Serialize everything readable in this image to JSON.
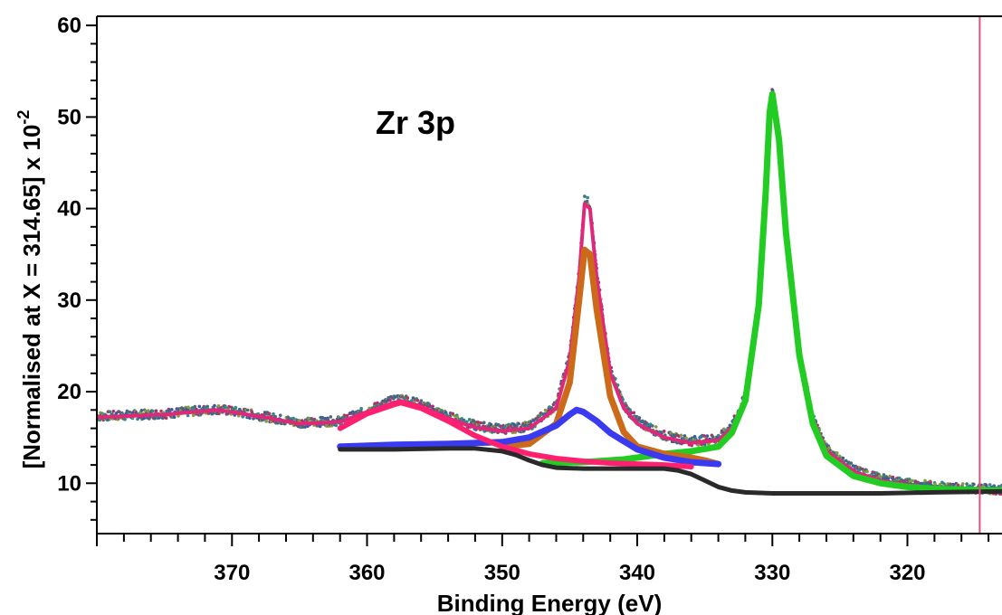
{
  "chart_data": {
    "type": "line",
    "title": "",
    "annotation": "Zr 3p",
    "xlabel": "Binding Energy (eV)",
    "ylabel_main": "[Normalised at X = 314.65]  x 10",
    "ylabel_exponent": "-2",
    "xlim": [
      380,
      313
    ],
    "x_reversed": true,
    "ylim": [
      4.5,
      61
    ],
    "xticks": [
      370,
      360,
      350,
      340,
      330,
      320
    ],
    "yticks": [
      10,
      20,
      30,
      40,
      50,
      60
    ],
    "grid": false,
    "legend": "none",
    "normalisation_marker": {
      "x": 314.65,
      "color": "#e0507a"
    },
    "series": [
      {
        "role": "measured data",
        "color": "#4a6a78",
        "x": [
          380,
          375,
          371,
          368,
          365,
          362,
          360,
          358,
          357.5,
          356,
          354,
          352,
          350,
          348,
          346,
          345,
          344.3,
          343.9,
          343.5,
          343,
          342,
          341,
          340,
          338,
          336,
          334,
          333,
          332,
          331,
          330.5,
          330.2,
          330,
          329.5,
          329,
          328,
          327,
          326,
          324,
          322,
          320,
          318,
          316,
          313
        ],
        "y": [
          17.3,
          17.6,
          18.1,
          17.4,
          16.6,
          16.8,
          17.9,
          19.1,
          19.3,
          18.6,
          17.3,
          16.3,
          15.9,
          16.2,
          18.5,
          24,
          33,
          41,
          40.5,
          33,
          22.5,
          18.5,
          16.8,
          15.2,
          14.6,
          14.9,
          16.2,
          19.5,
          30,
          42,
          51,
          53,
          48,
          38,
          24.5,
          17.2,
          13.8,
          11.5,
          10.5,
          10,
          9.7,
          9.5,
          9.3
        ]
      },
      {
        "role": "fit envelope",
        "color": "#e0287a",
        "x": [
          380,
          375,
          371,
          368,
          365,
          362,
          360,
          358,
          357.5,
          356,
          354,
          352,
          350,
          348,
          346,
          345,
          344.3,
          343.9,
          343.5,
          343,
          342,
          341,
          340,
          338,
          336,
          334,
          333,
          332,
          331,
          330.5,
          330.2,
          330,
          329.5,
          329,
          328,
          327,
          326,
          324,
          322,
          320,
          318,
          316,
          313
        ],
        "y": [
          17.2,
          17.5,
          18,
          17.3,
          16.5,
          16.7,
          17.8,
          18.8,
          19,
          18.4,
          17.1,
          16.1,
          15.7,
          16,
          18.2,
          23.5,
          32.5,
          40.5,
          40,
          32.5,
          22,
          18.2,
          16.5,
          15,
          14.4,
          14.7,
          16,
          19.2,
          29.5,
          41.5,
          50.5,
          52.5,
          47.5,
          37.5,
          24,
          17,
          13.6,
          11.3,
          10.3,
          9.8,
          9.5,
          9.3,
          9.2
        ]
      },
      {
        "role": "Zr 3p3/2 component",
        "color": "#22cc22",
        "x": [
          347,
          344,
          341,
          338,
          336,
          334,
          333,
          332,
          331,
          330.5,
          330.2,
          330,
          329.5,
          329,
          328,
          327,
          326,
          324,
          322,
          320,
          318,
          316,
          313
        ],
        "y": [
          12.2,
          12.3,
          12.6,
          13.2,
          13.5,
          14,
          15.5,
          19,
          29.5,
          41.5,
          50.5,
          52.5,
          47.5,
          37.5,
          24,
          16.5,
          13,
          10.8,
          10,
          9.6,
          9.4,
          9.3,
          9.2
        ]
      },
      {
        "role": "Zr 3p1/2 component",
        "color": "#cc6a1a",
        "x": [
          350,
          348,
          346,
          345,
          344.3,
          343.9,
          343.5,
          343,
          342,
          341,
          340,
          338,
          336,
          335,
          334
        ],
        "y": [
          14,
          14.3,
          16.5,
          21,
          30,
          35.5,
          35,
          29,
          19.5,
          15.6,
          14,
          13.2,
          12.8,
          12.5,
          12.1
        ]
      },
      {
        "role": "broad component ~344.5 eV",
        "color": "#3a3af0",
        "x": [
          362,
          358,
          354,
          350,
          348,
          346,
          345,
          344.5,
          344,
          343,
          342,
          340,
          338,
          336,
          334
        ],
        "y": [
          14,
          14.2,
          14.3,
          14.5,
          15,
          16.3,
          17.5,
          18,
          17.8,
          16.8,
          15.5,
          13.7,
          12.8,
          12.3,
          12.1
        ]
      },
      {
        "role": "satellite component ~357.5 eV",
        "color": "#ff2070",
        "x": [
          362,
          360,
          358,
          357.5,
          356,
          354,
          352,
          350,
          348,
          346,
          344,
          342,
          340,
          338,
          336
        ],
        "y": [
          16,
          17.6,
          18.6,
          18.8,
          18.2,
          16.8,
          15.2,
          14,
          13.2,
          12.7,
          12.4,
          12.2,
          12.1,
          12,
          11.8
        ]
      },
      {
        "role": "background",
        "color": "#2a2a2a",
        "x": [
          362,
          358,
          354,
          352,
          350,
          349,
          348,
          347,
          346,
          344,
          342,
          340,
          338,
          337,
          336,
          335,
          334,
          333,
          332,
          330,
          326,
          322,
          318,
          313
        ],
        "y": [
          13.7,
          13.7,
          13.8,
          13.8,
          13.5,
          13.1,
          12.5,
          12,
          11.7,
          11.6,
          11.6,
          11.6,
          11.6,
          11.4,
          11,
          10.3,
          9.6,
          9.2,
          9,
          8.9,
          8.9,
          8.9,
          9,
          9.1
        ]
      }
    ]
  }
}
